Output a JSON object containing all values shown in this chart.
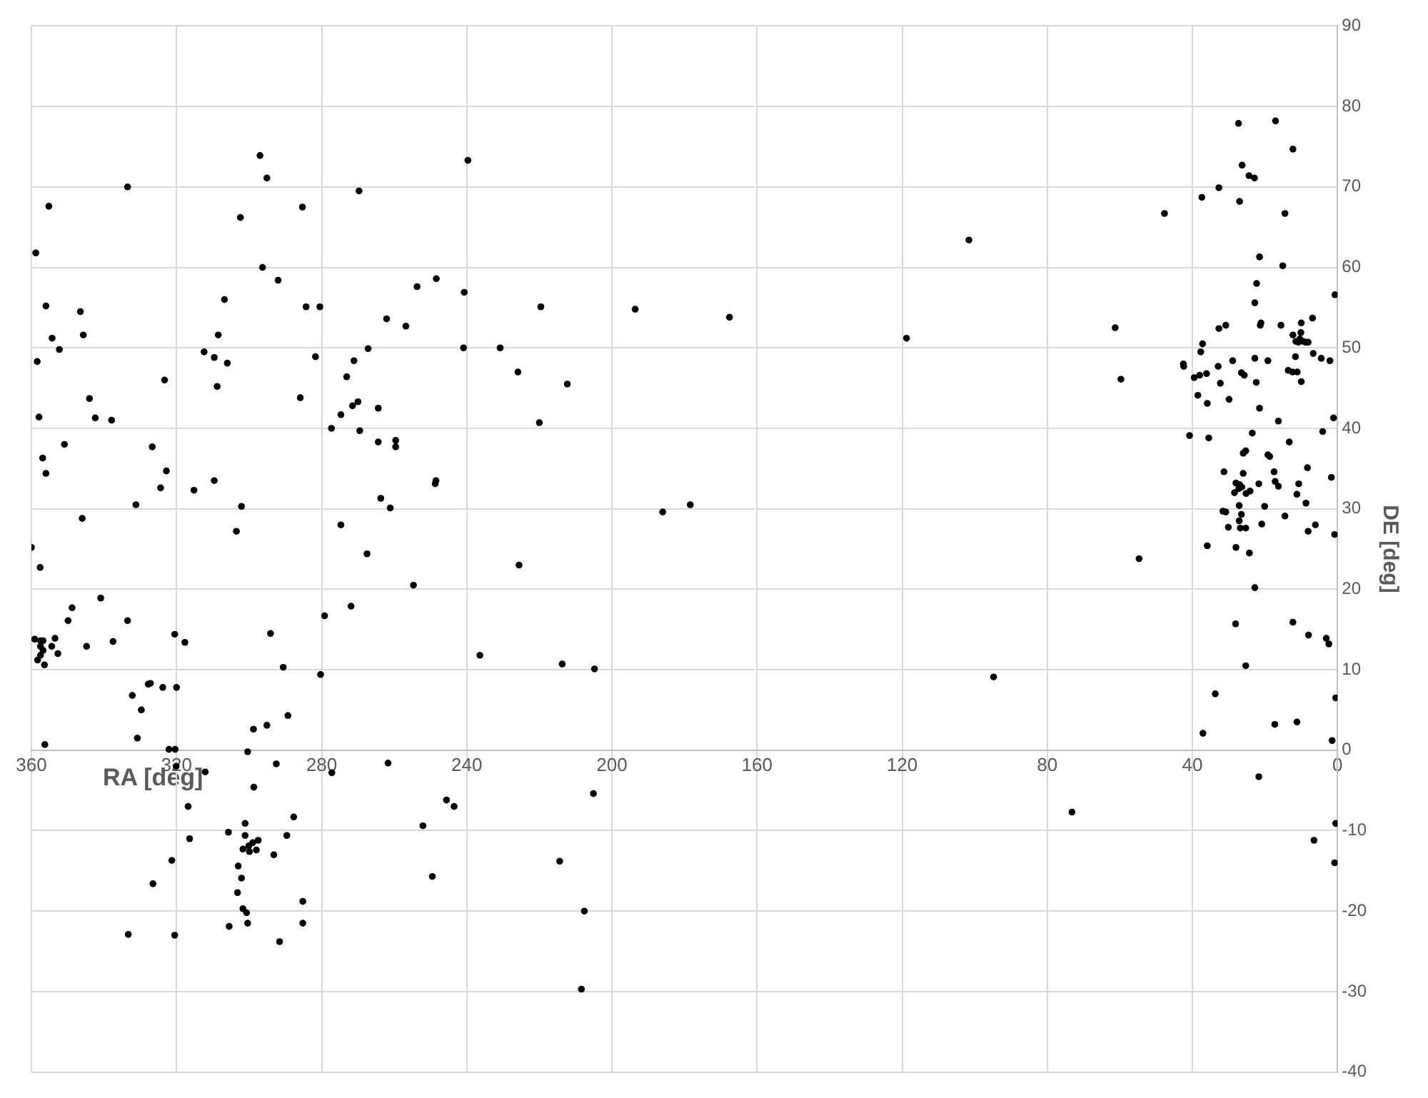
{
  "chart_data": {
    "type": "scatter",
    "xlabel": "RA [deg]",
    "ylabel": "DE [deg]",
    "xlim": [
      360,
      0
    ],
    "xticks": [
      360,
      320,
      280,
      240,
      200,
      160,
      120,
      80,
      40,
      0
    ],
    "ylim": [
      -40,
      90
    ],
    "yticks": [
      -40,
      -30,
      -20,
      -10,
      0,
      10,
      20,
      30,
      40,
      50,
      60,
      70,
      80,
      90
    ],
    "grid": true,
    "legend": false,
    "marker": "circle",
    "series": [
      {
        "color": "#000000",
        "x": [
          360,
          358.8,
          358.4,
          357.9,
          357.6,
          356.9,
          356,
          356,
          355.2,
          354.3,
          352.3,
          350.9,
          346.5,
          345.7,
          346,
          344,
          342.4,
          337.9,
          333.5,
          331.2,
          326.7,
          324.4,
          323.3,
          322.8,
          340.9,
          348.8,
          349.9,
          333.5,
          353.5,
          359.1,
          357.5,
          356.8,
          337.5,
          344.8,
          354.4,
          357.5,
          356.8,
          352.7,
          357.5,
          358.3,
          356.4,
          320.5,
          317.7,
          294.1,
          290.6,
          332.2,
          329.7,
          327.8,
          327.2,
          323.8,
          320,
          330.8,
          356.3,
          322.1,
          320.4,
          320.1,
          312.1,
          300.4,
          298.8,
          295.1,
          289.3,
          292.5,
          298.7,
          316.8,
          287.7,
          305.7,
          301.1,
          301.1,
          316.4,
          289.6,
          301.7,
          300.1,
          299,
          298,
          297.5,
          299.9,
          293.2,
          321.3,
          303,
          302.1,
          326.5,
          303.2,
          285.2,
          301.7,
          300.7,
          285.2,
          300.4,
          305.5,
          291.6,
          333.3,
          320.5,
          297,
          295.1,
          302.4,
          285.3,
          296.3,
          292,
          306.8,
          284.3,
          308.5,
          312.4,
          309.6,
          306,
          308.8,
          285.9,
          309.6,
          315.2,
          302.1,
          303.5,
          239.7,
          269.7,
          248.4,
          253.7,
          240.7,
          280.5,
          219.6,
          262.1,
          256.8,
          267.2,
          240.9,
          230.8,
          281.7,
          271.1,
          273.1,
          225.9,
          212.3,
          270,
          271.5,
          264.4,
          274.7,
          277.3,
          269.5,
          220,
          264.4,
          259.6,
          259.6,
          248.5,
          248.7,
          263.7,
          261.1,
          274.7,
          267.5,
          225.6,
          254.7,
          271.9,
          279.2,
          236.4,
          213.7,
          204.8,
          280.3,
          261.7,
          277.2,
          245.6,
          243.5,
          205.1,
          252.1,
          249.5,
          214.4,
          207.6,
          208.4,
          193.6,
          186,
          178.4,
          167.6,
          118.8,
          101.6,
          94.8,
          73.2,
          61.3,
          59.7,
          54.7,
          47.7,
          27.3,
          17.1,
          12.3,
          26.3,
          24.4,
          22.9,
          32.7,
          37.4,
          27,
          14.5,
          21.5,
          15.1,
          22.3,
          0.7,
          22.8,
          32.7,
          30.8,
          21.3,
          21.1,
          15.6,
          10,
          6.9,
          12.3,
          10.4,
          9.5,
          10.8,
          8.8,
          10.1,
          11.5,
          8.1,
          37.2,
          37.7,
          6.7,
          4.5,
          2.1,
          28.9,
          22.8,
          19.2,
          11.6,
          42.5,
          42.4,
          39.5,
          38,
          36.1,
          32.9,
          26.5,
          25.7,
          13.6,
          12.4,
          11.1,
          10,
          32.3,
          22.4,
          38.5,
          35.9,
          29.9,
          21.5,
          16.3,
          1.1,
          4.1,
          40.8,
          35.5,
          23.5,
          13.3,
          26,
          25.3,
          19.2,
          18.7,
          8.3,
          31.3,
          26,
          17.5,
          1.7,
          28,
          27,
          26.4,
          27.2,
          21.7,
          17.2,
          16.3,
          10.7,
          28.4,
          25.2,
          24.1,
          11.2,
          8.7,
          27.1,
          20.1,
          31.6,
          30.8,
          26.5,
          14.5,
          27.1,
          20.9,
          6.1,
          30.1,
          26.8,
          25.3,
          8.1,
          35.9,
          28,
          24.3,
          0.8,
          22.8,
          28.1,
          12.3,
          8,
          3.1,
          2.4,
          25.3,
          33.7,
          0.5,
          17.3,
          11.2,
          37.1,
          1.5,
          21.7,
          0.5,
          6.5,
          0.8
        ],
        "values": [
          25.2,
          61.8,
          48.3,
          41.4,
          22.7,
          36.3,
          34.4,
          55.2,
          67.6,
          51.2,
          49.8,
          38,
          54.5,
          51.6,
          28.8,
          43.7,
          41.3,
          41,
          70,
          30.5,
          37.7,
          32.6,
          46,
          34.7,
          18.9,
          17.7,
          16.1,
          16.1,
          13.9,
          13.8,
          13.6,
          13.6,
          13.5,
          12.9,
          12.9,
          12.9,
          12.4,
          12,
          11.8,
          11.2,
          10.6,
          14.4,
          13.4,
          14.5,
          10.3,
          6.8,
          5,
          8.2,
          8.3,
          7.8,
          7.8,
          1.5,
          0.7,
          0.1,
          0.1,
          -2,
          -2.7,
          -0.2,
          2.6,
          3.1,
          4.3,
          -1.7,
          -4.6,
          -7,
          -8.3,
          -10.2,
          -9.1,
          -10.6,
          -11,
          -10.6,
          -12.3,
          -11.9,
          -11.5,
          -12.4,
          -11.2,
          -12.6,
          -13,
          -13.7,
          -14.4,
          -15.9,
          -16.6,
          -17.7,
          -18.8,
          -19.7,
          -20.2,
          -21.5,
          -21.5,
          -21.9,
          -23.8,
          -22.9,
          -23,
          73.9,
          71.1,
          66.2,
          67.5,
          60,
          58.4,
          56,
          55.1,
          51.6,
          49.5,
          48.8,
          48.1,
          45.2,
          43.8,
          33.5,
          32.3,
          30.3,
          27.2,
          73.3,
          69.5,
          58.6,
          57.6,
          56.9,
          55.1,
          55.1,
          53.6,
          52.7,
          49.9,
          50,
          50,
          48.9,
          48.4,
          46.4,
          47,
          45.5,
          43.3,
          42.8,
          42.5,
          41.7,
          40,
          39.7,
          40.7,
          38.3,
          38.5,
          37.7,
          33.5,
          33.1,
          31.3,
          30.1,
          28,
          24.4,
          23,
          20.5,
          17.9,
          16.7,
          11.8,
          10.7,
          10.1,
          9.4,
          -1.6,
          -2.8,
          -6.2,
          -7,
          -5.4,
          -9.4,
          -15.7,
          -13.8,
          -20,
          -29.7,
          54.8,
          29.6,
          30.5,
          53.8,
          51.2,
          63.4,
          9.1,
          -7.7,
          52.5,
          46.1,
          23.8,
          66.7,
          77.9,
          78.2,
          74.7,
          72.7,
          71.4,
          71.1,
          69.9,
          68.7,
          68.2,
          66.7,
          61.3,
          60.2,
          58,
          56.6,
          55.6,
          52.4,
          52.8,
          52.8,
          53.1,
          52.8,
          53.1,
          53.7,
          51.6,
          51.1,
          50.8,
          50.7,
          50.7,
          51.9,
          50.8,
          50.7,
          50.5,
          49.5,
          49.3,
          48.7,
          48.4,
          48.4,
          48.7,
          48.4,
          48.9,
          48,
          47.7,
          46.3,
          46.6,
          46.8,
          47.7,
          46.9,
          46.6,
          47.2,
          47,
          47,
          45.8,
          45.6,
          45.7,
          44.1,
          43.1,
          43.6,
          42.5,
          40.9,
          41.3,
          39.6,
          39.1,
          38.8,
          39.4,
          38.3,
          36.9,
          37.2,
          36.7,
          36.5,
          35.1,
          34.6,
          34.4,
          34.6,
          33.9,
          33.2,
          33,
          32.7,
          32.5,
          33.1,
          33.4,
          32.8,
          33.1,
          32,
          31.9,
          32.2,
          31.8,
          30.7,
          30.4,
          30.3,
          29.7,
          29.6,
          29.3,
          29.1,
          28.5,
          28.1,
          28,
          27.7,
          27.6,
          27.6,
          27.2,
          25.4,
          25.2,
          24.5,
          26.8,
          20.2,
          15.7,
          15.9,
          14.3,
          13.9,
          13.2,
          10.5,
          7,
          6.5,
          3.2,
          3.5,
          2.1,
          1.2,
          -3.3,
          -9.1,
          -11.2,
          -14
        ]
      }
    ]
  }
}
